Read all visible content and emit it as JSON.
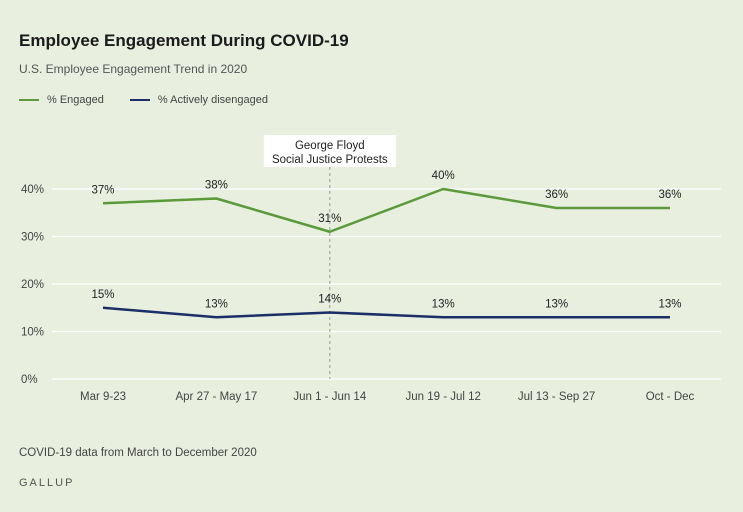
{
  "header": {
    "title": "Employee Engagement During COVID-19",
    "subtitle": "U.S. Employee Engagement Trend in 2020"
  },
  "footer": {
    "note": "COVID-19 data from March to December 2020",
    "brand": "GALLUP"
  },
  "colors": {
    "engaged": "#5a9a3a",
    "disengaged": "#1b2f66",
    "background": "#e8efdf",
    "grid": "#ffffff"
  },
  "chart_data": {
    "type": "line",
    "title": "Employee Engagement During COVID-19",
    "subtitle": "U.S. Employee Engagement Trend in 2020",
    "categories": [
      "Mar 9-23",
      "Apr 27 - May 17",
      "Jun 1 - Jun 14",
      "Jun 19 - Jul 12",
      "Jul 13 - Sep 27",
      "Oct - Dec"
    ],
    "series": [
      {
        "name": "% Engaged",
        "values": [
          37,
          38,
          31,
          40,
          36,
          36
        ],
        "labels": [
          "37%",
          "38%",
          "31%",
          "40%",
          "36%",
          "36%"
        ]
      },
      {
        "name": "% Actively disengaged",
        "values": [
          15,
          13,
          14,
          13,
          13,
          13
        ],
        "labels": [
          "15%",
          "13%",
          "14%",
          "13%",
          "13%",
          "13%"
        ]
      }
    ],
    "ylim": [
      0,
      40
    ],
    "yticks": [
      0,
      10,
      20,
      30,
      40
    ],
    "ytick_labels": [
      "0%",
      "10%",
      "20%",
      "30%",
      "40%"
    ],
    "grid": true,
    "legend_position": "top-left",
    "annotation": {
      "category": "Jun 1 - Jun 14",
      "lines": [
        "George Floyd",
        "Social Justice Protests"
      ]
    }
  }
}
